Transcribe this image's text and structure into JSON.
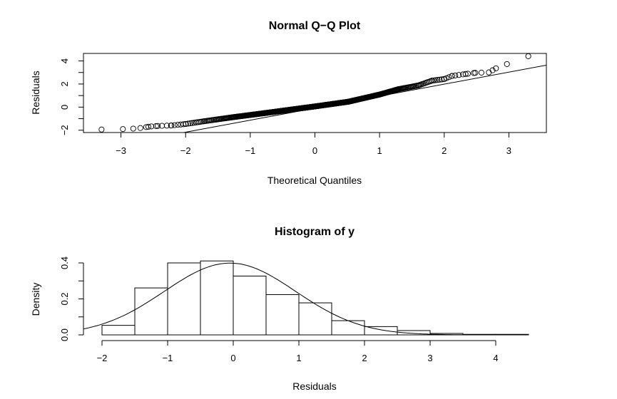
{
  "chart_data": [
    {
      "type": "scatter",
      "title": "Normal Q−Q Plot",
      "xlabel": "Theoretical Quantiles",
      "ylabel": "Residuals",
      "xlim": [
        -3.58,
        3.58
      ],
      "ylim": [
        -2.2,
        4.65
      ],
      "xticks": [
        -3,
        -2,
        -1,
        0,
        1,
        2,
        3
      ],
      "yticks": [
        -2,
        -1,
        0,
        1,
        2,
        3,
        4
      ],
      "ytick_labels": [
        "-2",
        "",
        "0",
        "",
        "2",
        "",
        "4"
      ],
      "n_points": 500,
      "points": [
        [
          -3.3,
          -1.94
        ],
        [
          -2.97,
          -1.9
        ],
        [
          -2.81,
          -1.86
        ],
        [
          -2.7,
          -1.81
        ],
        [
          -2.61,
          -1.73
        ],
        [
          -2.53,
          -1.67
        ],
        [
          -2.43,
          -1.63
        ],
        [
          -2.22,
          -1.59
        ],
        [
          -2.0,
          -1.46
        ],
        [
          -1.71,
          -1.22
        ],
        [
          -1.29,
          -0.89
        ],
        [
          -0.78,
          -0.52
        ],
        [
          0.0,
          0.06
        ],
        [
          0.52,
          0.47
        ],
        [
          1.0,
          1.09
        ],
        [
          1.29,
          1.55
        ],
        [
          1.6,
          1.88
        ],
        [
          1.81,
          2.29
        ],
        [
          2.0,
          2.43
        ],
        [
          2.12,
          2.7
        ],
        [
          2.33,
          2.87
        ],
        [
          2.48,
          2.97
        ],
        [
          2.69,
          3.01
        ],
        [
          2.8,
          3.36
        ],
        [
          2.97,
          3.73
        ],
        [
          3.3,
          4.41
        ]
      ],
      "reference_line": {
        "slope": 1.04,
        "intercept": -0.09
      }
    },
    {
      "type": "bar",
      "title": "Histogram of y",
      "xlabel": "Residuals",
      "ylabel": "Density",
      "xlim": [
        -2.28,
        4.5
      ],
      "ylim": [
        0,
        0.4
      ],
      "xticks": [
        -2,
        -1,
        0,
        1,
        2,
        3,
        4
      ],
      "yticks": [
        0,
        0.1,
        0.2,
        0.3,
        0.4
      ],
      "ytick_labels": [
        "0.0",
        "",
        "0.2",
        "",
        "0.4"
      ],
      "bin_edges": [
        -2,
        -1.5,
        -1,
        -0.5,
        0,
        0.5,
        1,
        1.5,
        2,
        2.5,
        3,
        3.5,
        4,
        4.5
      ],
      "values": [
        0.053,
        0.261,
        0.4,
        0.411,
        0.327,
        0.224,
        0.178,
        0.079,
        0.046,
        0.024,
        0.008,
        0.003,
        0.003
      ],
      "density_curve": {
        "dist": "normal",
        "mean": -0.05,
        "sd": 1.0,
        "range": [
          -2.28,
          4.5
        ]
      }
    }
  ]
}
